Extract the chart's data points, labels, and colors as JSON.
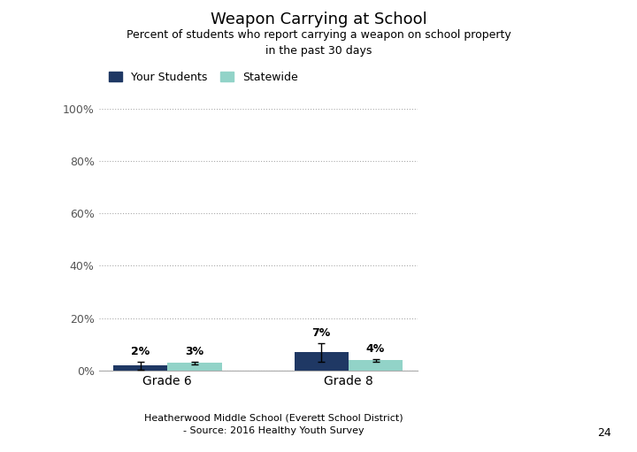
{
  "title": "Weapon Carrying at School",
  "subtitle": "Percent of students who report carrying a weapon on school property\nin the past 30 days",
  "footer_line1": "Heatherwood Middle School (Everett School District)",
  "footer_line2": "- Source: 2016 Healthy Youth Survey",
  "page_number": "24",
  "categories": [
    "Grade 6",
    "Grade 8"
  ],
  "your_students_values": [
    2,
    7
  ],
  "statewide_values": [
    3,
    4
  ],
  "your_students_errors": [
    1.5,
    3.5
  ],
  "statewide_errors": [
    0.5,
    0.5
  ],
  "your_students_color": "#1F3864",
  "statewide_color": "#92D3C8",
  "bar_width": 0.3,
  "ylim": [
    0,
    100
  ],
  "yticks": [
    0,
    20,
    40,
    60,
    80,
    100
  ],
  "ytick_labels": [
    "0%",
    "20%",
    "40%",
    "60%",
    "80%",
    "100%"
  ],
  "legend_your_students": "Your Students",
  "legend_statewide": "Statewide",
  "title_fontsize": 13,
  "subtitle_fontsize": 9,
  "label_fontsize": 9,
  "footer_fontsize": 8,
  "background_color": "#ffffff",
  "grid_color": "#aaaaaa"
}
